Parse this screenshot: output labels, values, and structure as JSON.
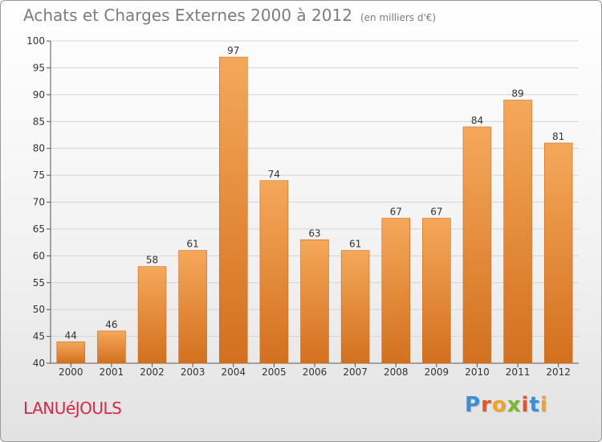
{
  "header": {
    "title": "Achats et Charges Externes 2000 à 2012",
    "subtitle": "(en milliers d'€)"
  },
  "footer": {
    "commune": "LANUéJOULS",
    "logo": "Proxiti"
  },
  "colors": {
    "bar_light": "#f5a85a",
    "bar_dark": "#d2701e",
    "commune": "#d7284a",
    "logo_letters": [
      "#3a8fd6",
      "#e8542a",
      "#f0a32a",
      "#7ab82e",
      "#e8542a",
      "#3a8fd6",
      "#f0a32a"
    ]
  },
  "chart_data": {
    "type": "bar",
    "title": "Achats et Charges Externes 2000 à 2012",
    "subtitle": "(en milliers d'€)",
    "categories": [
      "2000",
      "2001",
      "2002",
      "2003",
      "2004",
      "2005",
      "2006",
      "2007",
      "2008",
      "2009",
      "2010",
      "2011",
      "2012"
    ],
    "values": [
      44,
      46,
      58,
      61,
      97,
      74,
      63,
      61,
      67,
      67,
      84,
      89,
      81
    ],
    "ylim": [
      40,
      100
    ],
    "yticks": [
      40,
      45,
      50,
      55,
      60,
      65,
      70,
      75,
      80,
      85,
      90,
      95,
      100
    ],
    "grid": true,
    "data_labels": true
  }
}
